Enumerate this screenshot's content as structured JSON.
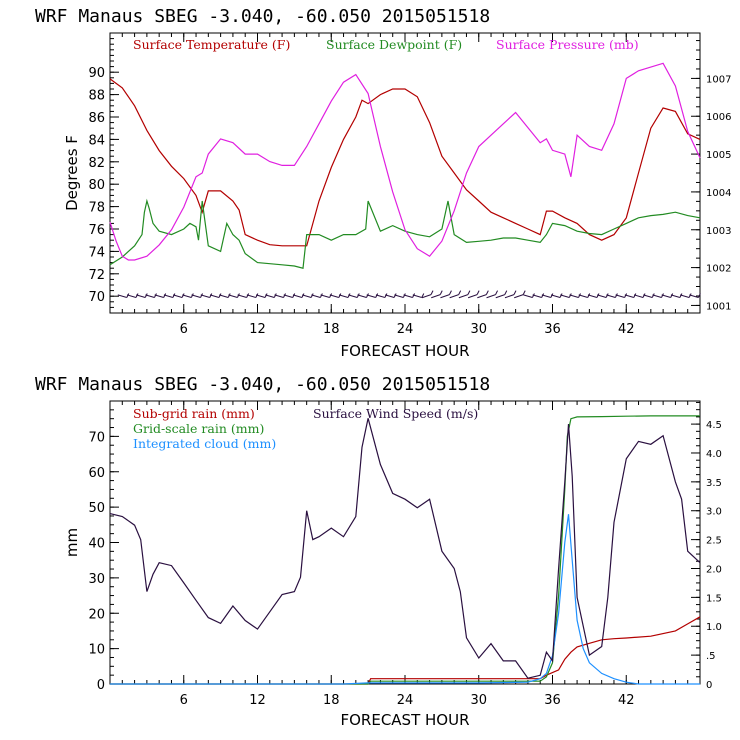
{
  "chart_data": [
    {
      "type": "line",
      "title": "WRF   Manaus SBEG   -3.040, -60.050  2015051518",
      "xlabel": "FORECAST HOUR",
      "ylabel": "Degrees F",
      "y2label": "",
      "xlim": [
        0,
        48
      ],
      "ylim": [
        68.5,
        93.5
      ],
      "y2lim": [
        1000.8,
        1008.2
      ],
      "x_ticks": [
        6,
        12,
        18,
        24,
        30,
        36,
        42
      ],
      "y_ticks": [
        70,
        72,
        74,
        76,
        78,
        80,
        82,
        84,
        86,
        88,
        90
      ],
      "y2_ticks": [
        1001,
        1002,
        1003,
        1004,
        1005,
        1006,
        1007
      ],
      "wind_barbs": "surface wind barbs along y=70",
      "colors": {
        "temperature": "#b30000",
        "dewpoint": "#228b22",
        "pressure": "#e020e0",
        "barbs": "#2a1040"
      },
      "series": [
        {
          "name": "Surface Temperature (F)",
          "axis": "left",
          "x": [
            0,
            1,
            2,
            3,
            4,
            5,
            6,
            7,
            7.5,
            8,
            9,
            10,
            10.5,
            11,
            12,
            13,
            14,
            15,
            16,
            17,
            18,
            19,
            20,
            20.5,
            21,
            22,
            23,
            24,
            25,
            26,
            27,
            28,
            29,
            30,
            31,
            32,
            33,
            34,
            35,
            35.5,
            36,
            37,
            38,
            39,
            40,
            41,
            42,
            43,
            44,
            45,
            46,
            47,
            48
          ],
          "y": [
            89.4,
            88.6,
            87,
            84.8,
            83,
            81.6,
            80.5,
            79,
            77.5,
            79.4,
            79.4,
            78.5,
            77.7,
            75.5,
            75,
            74.6,
            74.5,
            74.5,
            74.5,
            78.5,
            81.5,
            84,
            86,
            87.5,
            87.2,
            88,
            88.5,
            88.5,
            87.8,
            85.5,
            82.5,
            81,
            79.5,
            78.5,
            77.5,
            77,
            76.5,
            76,
            75.5,
            77.6,
            77.6,
            77,
            76.5,
            75.5,
            75,
            75.5,
            77,
            81,
            85,
            86.8,
            86.5,
            84.5,
            84
          ]
        },
        {
          "name": "Surface Dewpoint (F)",
          "axis": "left",
          "x": [
            0,
            1,
            2,
            2.6,
            2.8,
            3,
            3.2,
            3.5,
            4,
            5,
            6,
            6.5,
            7,
            7.2,
            7.5,
            8,
            9,
            9.5,
            10,
            10.5,
            11,
            12,
            13,
            14,
            15,
            15.7,
            16,
            17,
            18,
            19,
            20,
            20.8,
            21,
            22,
            23,
            24,
            25,
            26,
            27,
            27.5,
            28,
            29,
            30,
            31,
            32,
            33,
            34,
            35,
            35.5,
            36,
            37,
            38,
            39,
            40,
            41,
            42,
            43,
            44,
            45,
            46,
            47,
            48
          ],
          "y": [
            72.8,
            73.5,
            74.5,
            75.5,
            77.5,
            78.5,
            77.8,
            76.5,
            75.8,
            75.5,
            76,
            76.5,
            76.2,
            75,
            78.5,
            74.5,
            74,
            76.5,
            75.5,
            75,
            73.8,
            73,
            72.9,
            72.8,
            72.7,
            72.5,
            75.5,
            75.5,
            75,
            75.5,
            75.5,
            76,
            78.5,
            75.8,
            76.3,
            75.8,
            75.5,
            75.3,
            76,
            78.5,
            75.5,
            74.8,
            74.9,
            75,
            75.2,
            75.2,
            75,
            74.8,
            75.5,
            76.5,
            76.3,
            75.8,
            75.6,
            75.5,
            76,
            76.5,
            77,
            77.2,
            77.3,
            77.5,
            77.2,
            77
          ]
        },
        {
          "name": "Surface Pressure (mb)",
          "axis": "right",
          "x": [
            0,
            0.5,
            1,
            1.5,
            2,
            3,
            4,
            5,
            6,
            7,
            7.5,
            8,
            9,
            10,
            11,
            12,
            13,
            14,
            15,
            16,
            17,
            18,
            19,
            20,
            21,
            22,
            23,
            24,
            25,
            26,
            27,
            28,
            29,
            30,
            31,
            32,
            33,
            34,
            35,
            35.5,
            36,
            37,
            37.5,
            38,
            39,
            40,
            41,
            42,
            43,
            44,
            45,
            46,
            47,
            48
          ],
          "y": [
            1003.2,
            1002.7,
            1002.3,
            1002.2,
            1002.2,
            1002.3,
            1002.6,
            1003,
            1003.6,
            1004.4,
            1004.5,
            1005,
            1005.4,
            1005.3,
            1005,
            1005,
            1004.8,
            1004.7,
            1004.7,
            1005.2,
            1005.8,
            1006.4,
            1006.9,
            1007.1,
            1006.6,
            1005.2,
            1004,
            1003,
            1002.5,
            1002.3,
            1002.7,
            1003.5,
            1004.5,
            1005.2,
            1005.5,
            1005.8,
            1006.1,
            1005.7,
            1005.3,
            1005.4,
            1005.1,
            1005,
            1004.4,
            1005.5,
            1005.2,
            1005.1,
            1005.8,
            1007,
            1007.2,
            1007.3,
            1007.4,
            1006.8,
            1005.6,
            1004.9
          ]
        }
      ]
    },
    {
      "type": "line",
      "title": "WRF   Manaus SBEG   -3.040, -60.050  2015051518",
      "xlabel": "FORECAST HOUR",
      "ylabel": "mm",
      "y2label": "",
      "xlim": [
        0,
        48
      ],
      "ylim": [
        0,
        80
      ],
      "y2lim": [
        0,
        4.9
      ],
      "x_ticks": [
        6,
        12,
        18,
        24,
        30,
        36,
        42
      ],
      "y_ticks": [
        0,
        10,
        20,
        30,
        40,
        50,
        60,
        70
      ],
      "y2_ticks": [
        0,
        0.5,
        1.0,
        1.5,
        2.0,
        2.5,
        3.0,
        3.5,
        4.0,
        4.5
      ],
      "y2_tick_labels": [
        "0",
        ".5",
        "1.0",
        "1.5",
        "2.0",
        "2.5",
        "3.0",
        "3.5",
        "4.0",
        "4.5"
      ],
      "colors": {
        "subgrid_rain": "#b30000",
        "grid_rain": "#228b22",
        "cloud": "#1e90ff",
        "wind": "#2a1040"
      },
      "series": [
        {
          "name": "Sub-grid rain (mm)",
          "axis": "left",
          "x": [
            0,
            21,
            21.2,
            35,
            35.5,
            36.5,
            37,
            37.5,
            38,
            39,
            40,
            41,
            42,
            44,
            46,
            47,
            48
          ],
          "y": [
            0,
            0,
            1.5,
            1.5,
            2.5,
            4,
            7,
            9,
            10.5,
            11.5,
            12.5,
            12.8,
            13,
            13.5,
            15,
            17,
            19
          ]
        },
        {
          "name": "Grid-scale rain (mm)",
          "axis": "left",
          "x": [
            0,
            21,
            21.2,
            35,
            35.5,
            36,
            36.5,
            37,
            37.2,
            37.5,
            38,
            40,
            42,
            44,
            46,
            48
          ],
          "y": [
            0,
            0,
            0.8,
            0.8,
            2,
            6,
            25,
            55,
            70,
            75,
            75.5,
            75.6,
            75.7,
            75.8,
            75.8,
            75.8
          ]
        },
        {
          "name": "Integrated cloud (mm)",
          "axis": "left",
          "x": [
            0,
            19,
            21,
            30,
            34,
            35,
            35.5,
            36,
            36.5,
            37,
            37.3,
            37.6,
            38,
            38.5,
            39,
            40,
            41,
            42,
            43,
            48
          ],
          "y": [
            0,
            0,
            0.3,
            0.3,
            0.5,
            1.5,
            3,
            8,
            20,
            40,
            48,
            35,
            18,
            10,
            6,
            3,
            1.5,
            0.5,
            0,
            0
          ]
        },
        {
          "name": "Surface Wind Speed (m/s)",
          "axis": "right",
          "x": [
            0,
            1,
            2,
            2.5,
            3,
            3.5,
            4,
            5,
            6,
            7,
            8,
            9,
            10,
            11,
            12,
            13,
            14,
            15,
            15.5,
            16,
            16.5,
            17,
            18,
            19,
            20,
            20.5,
            21,
            22,
            23,
            24,
            25,
            26,
            27,
            28,
            28.5,
            29,
            30,
            31,
            32,
            33,
            34,
            35,
            35.5,
            36,
            36.5,
            37,
            37.3,
            37.6,
            38,
            39,
            40,
            40.5,
            41,
            42,
            43,
            44,
            45,
            46,
            46.5,
            47,
            48
          ],
          "y": [
            2.95,
            2.9,
            2.75,
            2.5,
            1.6,
            1.9,
            2.1,
            2.05,
            1.75,
            1.45,
            1.15,
            1.05,
            1.35,
            1.1,
            0.95,
            1.25,
            1.55,
            1.6,
            1.85,
            3.0,
            2.5,
            2.55,
            2.7,
            2.55,
            2.9,
            4.1,
            4.6,
            3.8,
            3.3,
            3.2,
            3.05,
            3.2,
            2.3,
            2.0,
            1.6,
            0.8,
            0.45,
            0.7,
            0.4,
            0.4,
            0.1,
            0.15,
            0.55,
            0.4,
            2.0,
            3.5,
            4.5,
            3.6,
            1.5,
            0.5,
            0.65,
            1.5,
            2.8,
            3.9,
            4.2,
            4.15,
            4.3,
            3.5,
            3.2,
            2.3,
            2.1
          ]
        }
      ]
    }
  ]
}
